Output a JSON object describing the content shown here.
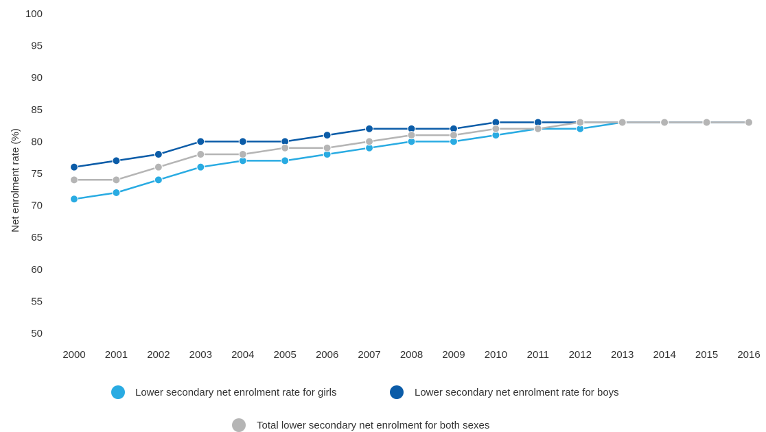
{
  "chart_data": {
    "type": "line",
    "title": "",
    "xlabel": "",
    "ylabel": "Net enrolment rate (%)",
    "ylim": [
      50,
      100
    ],
    "yticks": [
      50,
      55,
      60,
      65,
      70,
      75,
      80,
      85,
      90,
      95,
      100
    ],
    "grid": false,
    "legend_position": "bottom",
    "categories": [
      "2000",
      "2001",
      "2002",
      "2003",
      "2004",
      "2005",
      "2006",
      "2007",
      "2008",
      "2009",
      "2010",
      "2011",
      "2012",
      "2013",
      "2014",
      "2015",
      "2016"
    ],
    "series": [
      {
        "name": "Lower secondary net enrolment rate for girls",
        "color": "#29abe2",
        "values": [
          71,
          72,
          74,
          76,
          77,
          77,
          78,
          79,
          80,
          80,
          81,
          82,
          82,
          83,
          83,
          83,
          83
        ]
      },
      {
        "name": "Lower secondary net enrolment rate for boys",
        "color": "#0b5ca8",
        "values": [
          76,
          77,
          78,
          80,
          80,
          80,
          81,
          82,
          82,
          82,
          83,
          83,
          83,
          83,
          83,
          83,
          83
        ]
      },
      {
        "name": "Total lower secondary net enrolment for both sexes",
        "color": "#b5b5b5",
        "values": [
          74,
          74,
          76,
          78,
          78,
          79,
          79,
          80,
          81,
          81,
          82,
          82,
          83,
          83,
          83,
          83,
          83
        ]
      }
    ]
  }
}
